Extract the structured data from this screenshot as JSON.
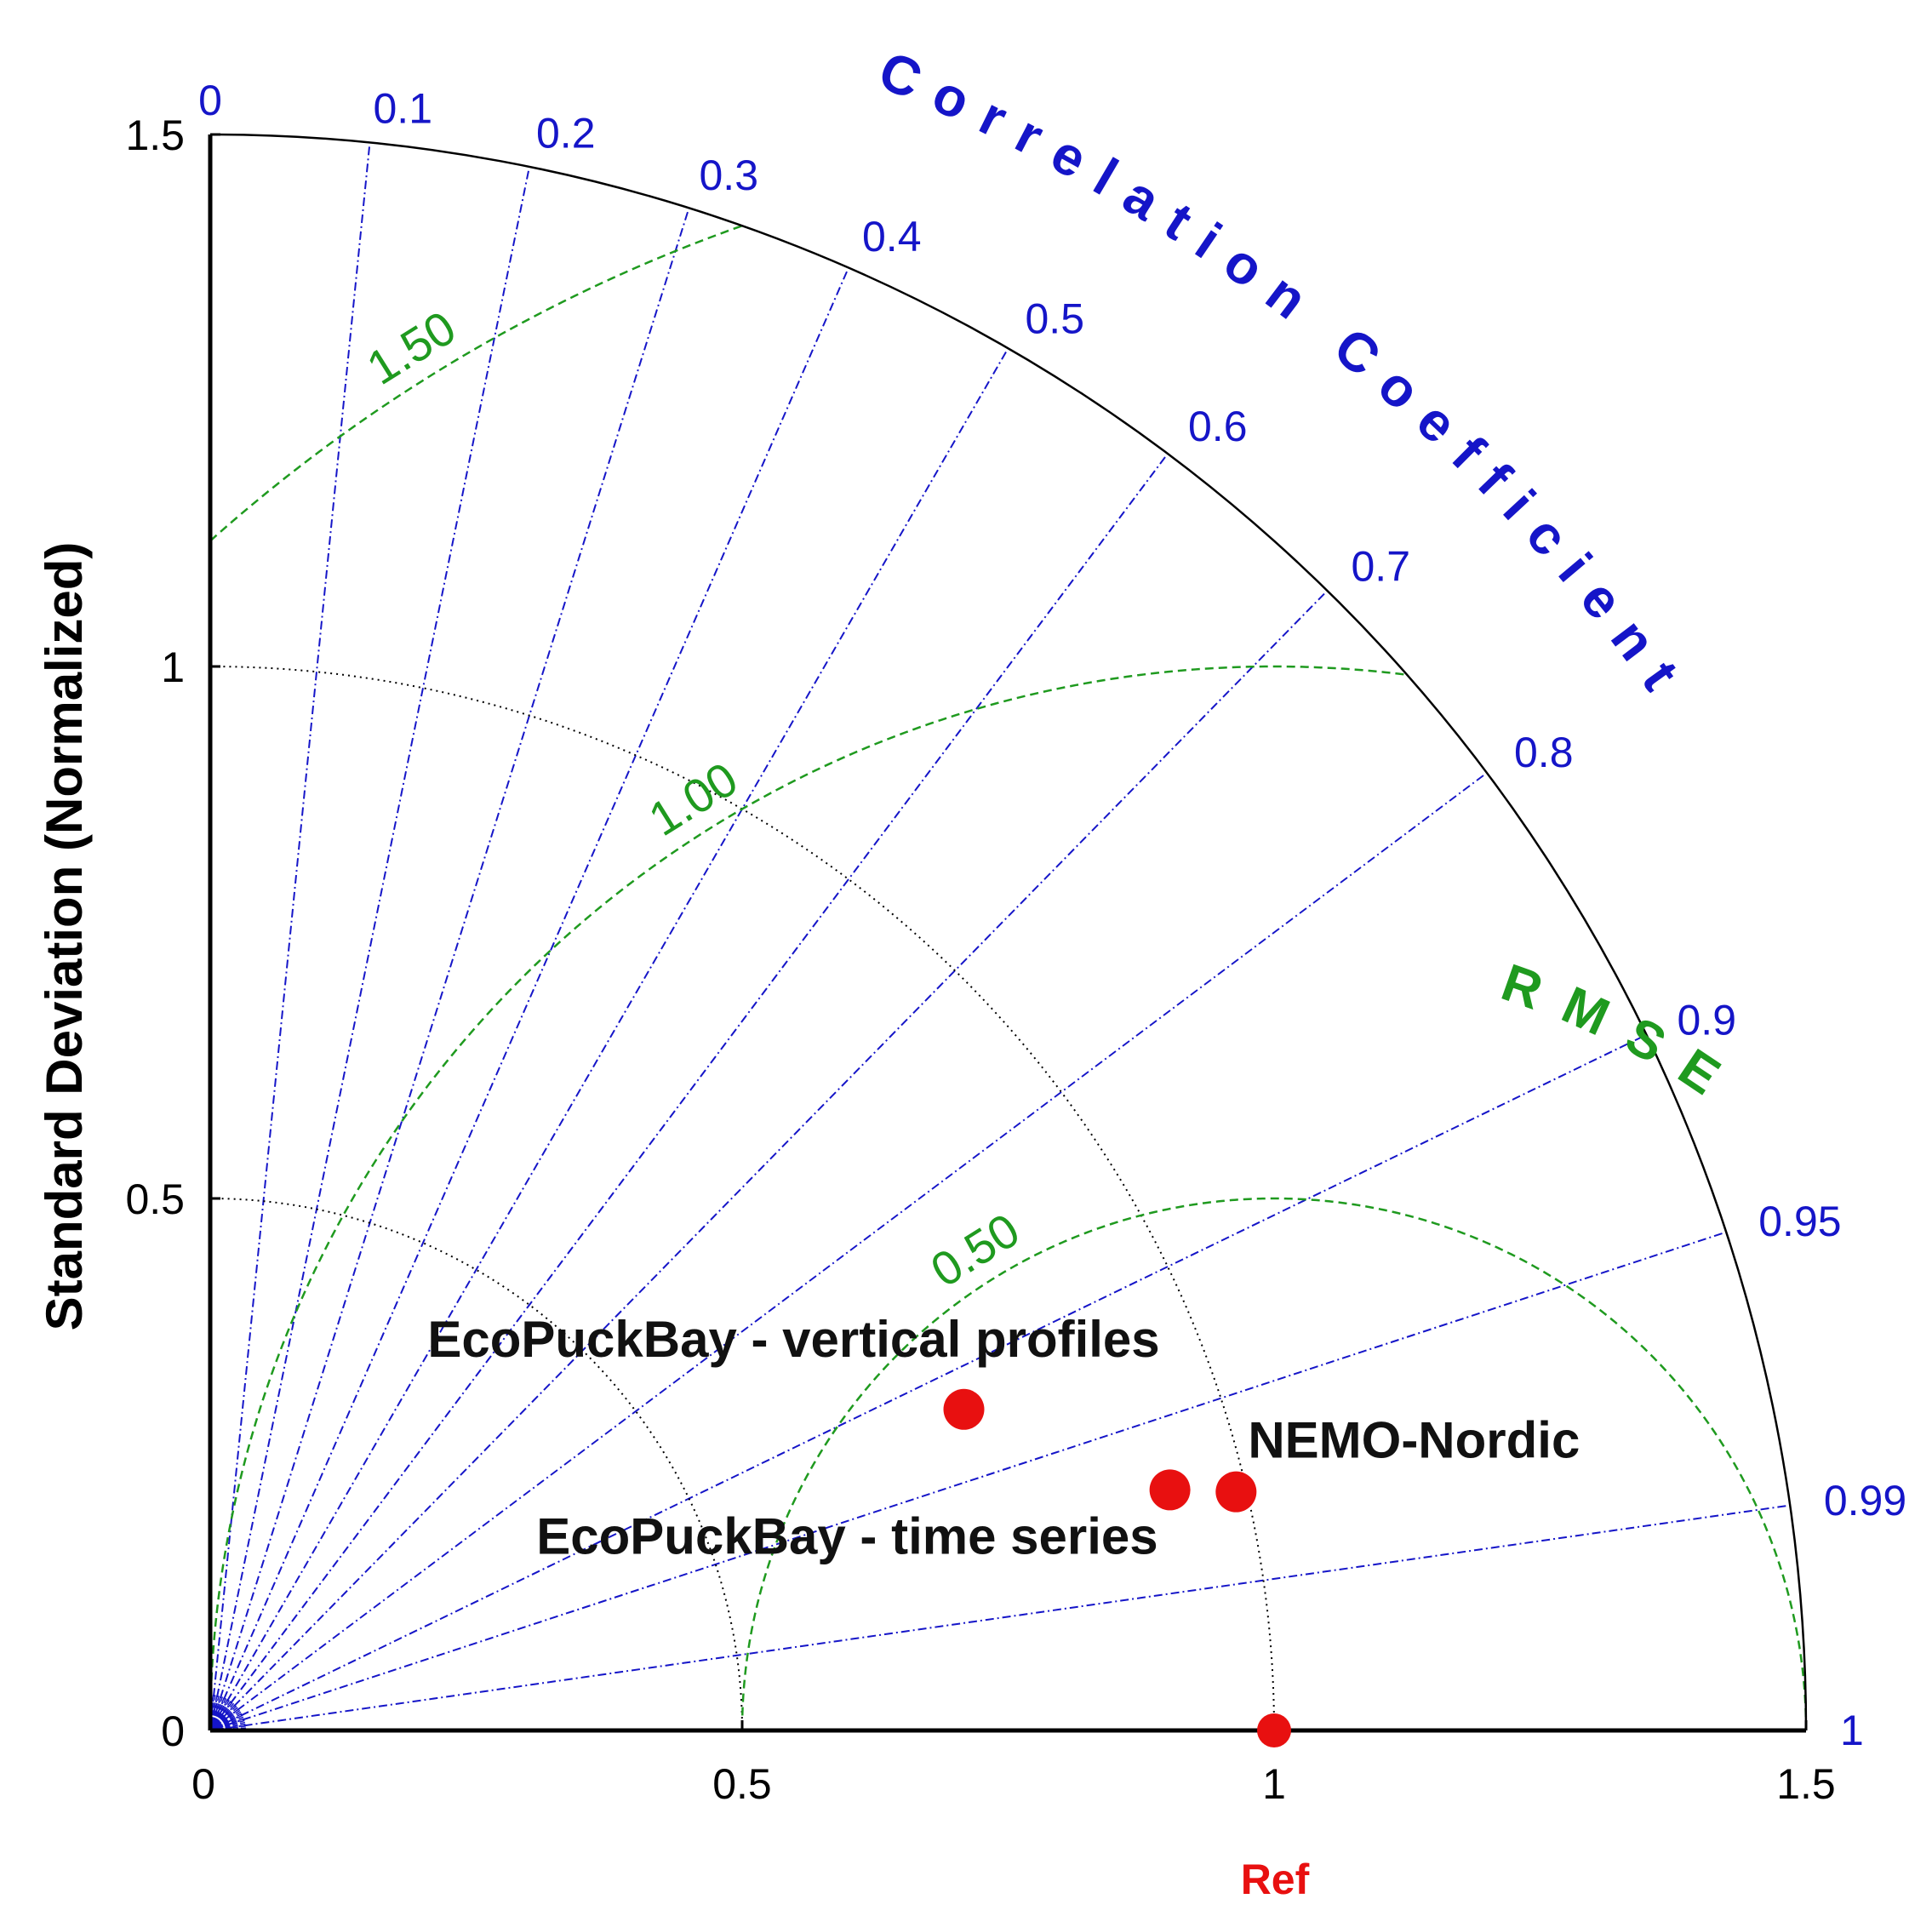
{
  "chart_data": {
    "type": "scatter",
    "subtype": "taylor-diagram",
    "std_max": 1.5,
    "ylabel": "Standard Deviation (Normalized)",
    "correlation_title": "Correlation Coefficient",
    "rmse_title": "RMSE",
    "ref_label": "Ref",
    "std_ticks": [
      {
        "value": 0,
        "label": "0"
      },
      {
        "value": 0.5,
        "label": "0.5"
      },
      {
        "value": 1,
        "label": "1"
      },
      {
        "value": 1.5,
        "label": "1.5"
      }
    ],
    "correlation_ticks": [
      {
        "value": 0,
        "label": "0"
      },
      {
        "value": 0.1,
        "label": "0.1"
      },
      {
        "value": 0.2,
        "label": "0.2"
      },
      {
        "value": 0.3,
        "label": "0.3"
      },
      {
        "value": 0.4,
        "label": "0.4"
      },
      {
        "value": 0.5,
        "label": "0.5"
      },
      {
        "value": 0.6,
        "label": "0.6"
      },
      {
        "value": 0.7,
        "label": "0.7"
      },
      {
        "value": 0.8,
        "label": "0.8"
      },
      {
        "value": 0.9,
        "label": "0.9"
      },
      {
        "value": 0.95,
        "label": "0.95"
      },
      {
        "value": 0.99,
        "label": "0.99"
      },
      {
        "value": 1,
        "label": "1"
      }
    ],
    "rmse_contours": [
      {
        "value": 0.5,
        "label": "0.50"
      },
      {
        "value": 1.0,
        "label": "1.00"
      },
      {
        "value": 1.5,
        "label": "1.50"
      }
    ],
    "reference": {
      "std": 1.0,
      "correlation": 1.0,
      "color": "#e81010"
    },
    "points": [
      {
        "name": "EcoPuckBay - vertical profiles",
        "label": "EcoPuckBay - vertical profiles",
        "std": 0.77,
        "correlation": 0.92,
        "color": "#e81010"
      },
      {
        "name": "EcoPuckBay - time series",
        "label": "EcoPuckBay - time series",
        "std": 0.93,
        "correlation": 0.97,
        "color": "#e81010"
      },
      {
        "name": "NEMO-Nordic",
        "label": "NEMO-Nordic",
        "std": 0.99,
        "correlation": 0.974,
        "color": "#e81010"
      }
    ],
    "colors": {
      "axis": "#000000",
      "correlation": "#1515c8",
      "rmse": "#1f9a1f",
      "std_grid": "#000000",
      "marker": "#e81010"
    }
  }
}
